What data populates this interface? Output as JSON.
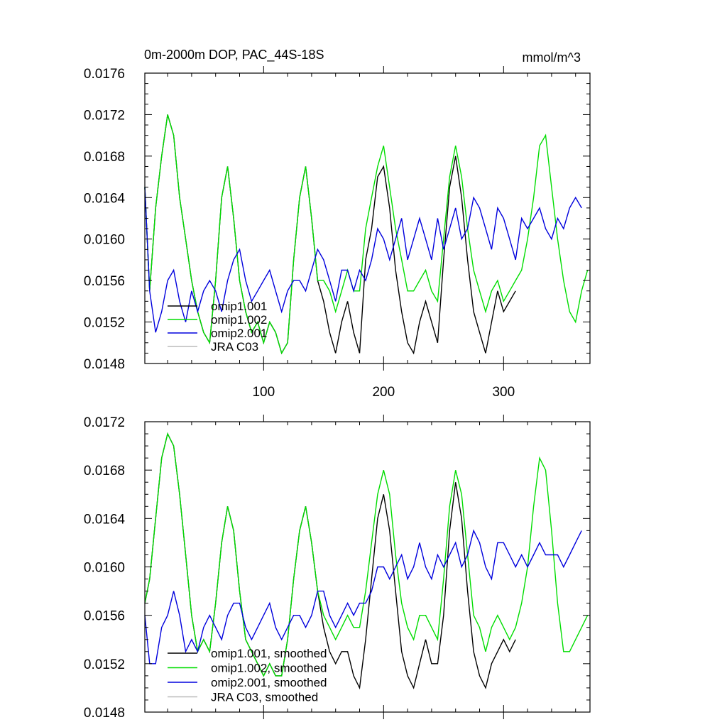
{
  "chart_data": [
    {
      "type": "line",
      "title": "0m-2000m DOP, PAC_44S-18S",
      "units": "mmol/m^3",
      "xlim": [
        1,
        372
      ],
      "ylim": [
        0.0148,
        0.0176
      ],
      "y_ticks": [
        "0.0148",
        "0.0152",
        "0.0156",
        "0.0160",
        "0.0164",
        "0.0168",
        "0.0172",
        "0.0176"
      ],
      "x_ticks": [
        "100",
        "200",
        "300"
      ],
      "grid": false,
      "legend_position": "bottom-left",
      "series": [
        {
          "name": "omip1.001",
          "color": "#000000",
          "x": [
            1,
            5,
            10,
            15,
            20,
            25,
            30,
            35,
            40,
            45,
            50,
            55,
            60,
            65,
            70,
            75,
            80,
            85,
            90,
            95,
            100,
            105,
            110,
            115,
            120,
            125,
            130,
            135,
            140,
            145,
            150,
            155,
            160,
            165,
            170,
            175,
            180,
            185,
            190,
            195,
            200,
            205,
            210,
            215,
            220,
            225,
            230,
            235,
            240,
            245,
            250,
            255,
            260,
            265,
            270,
            275,
            280,
            285,
            290,
            295,
            300,
            305,
            310
          ],
          "y": [
            0.0165,
            0.0155,
            0.0163,
            0.0168,
            0.0172,
            0.017,
            0.0164,
            0.016,
            0.0156,
            0.0153,
            0.0151,
            0.015,
            0.0156,
            0.0164,
            0.0167,
            0.0162,
            0.0156,
            0.0153,
            0.0151,
            0.0152,
            0.015,
            0.0152,
            0.0151,
            0.0149,
            0.015,
            0.0158,
            0.0164,
            0.0167,
            0.0162,
            0.0156,
            0.0154,
            0.0151,
            0.0149,
            0.0152,
            0.0154,
            0.0151,
            0.0149,
            0.0158,
            0.0161,
            0.0166,
            0.0167,
            0.0163,
            0.0157,
            0.0153,
            0.015,
            0.0149,
            0.0152,
            0.0154,
            0.0152,
            0.015,
            0.0158,
            0.0165,
            0.0168,
            0.0164,
            0.0158,
            0.0153,
            0.0151,
            0.0149,
            0.0152,
            0.0155,
            0.0153,
            0.0154,
            0.0155
          ]
        },
        {
          "name": "omip1.002",
          "color": "#00dd00",
          "x": [
            1,
            5,
            10,
            15,
            20,
            25,
            30,
            35,
            40,
            45,
            50,
            55,
            60,
            65,
            70,
            75,
            80,
            85,
            90,
            95,
            100,
            105,
            110,
            115,
            120,
            125,
            130,
            135,
            140,
            145,
            150,
            155,
            160,
            165,
            170,
            175,
            180,
            185,
            190,
            195,
            200,
            205,
            210,
            215,
            220,
            225,
            230,
            235,
            240,
            245,
            250,
            255,
            260,
            265,
            270,
            275,
            280,
            285,
            290,
            295,
            300,
            305,
            310,
            315,
            320,
            325,
            330,
            335,
            340,
            345,
            350,
            355,
            360,
            365,
            370
          ],
          "y": [
            0.0165,
            0.0155,
            0.0163,
            0.0168,
            0.0172,
            0.017,
            0.0164,
            0.016,
            0.0156,
            0.0153,
            0.0151,
            0.015,
            0.0156,
            0.0164,
            0.0167,
            0.0162,
            0.0156,
            0.0153,
            0.0151,
            0.0152,
            0.015,
            0.0152,
            0.0151,
            0.0149,
            0.015,
            0.0158,
            0.0164,
            0.0167,
            0.0162,
            0.0156,
            0.0156,
            0.0155,
            0.0153,
            0.0155,
            0.0157,
            0.0155,
            0.0155,
            0.0161,
            0.0164,
            0.0167,
            0.0169,
            0.0165,
            0.0161,
            0.0158,
            0.0155,
            0.0155,
            0.0156,
            0.0157,
            0.0155,
            0.0154,
            0.016,
            0.0166,
            0.0169,
            0.0166,
            0.0161,
            0.0157,
            0.0155,
            0.0153,
            0.0155,
            0.0156,
            0.0154,
            0.0155,
            0.0156,
            0.0157,
            0.016,
            0.0164,
            0.0169,
            0.017,
            0.0165,
            0.016,
            0.0156,
            0.0153,
            0.0152,
            0.0155,
            0.0157
          ]
        },
        {
          "name": "omip2.001",
          "color": "#0000dd",
          "x": [
            1,
            5,
            10,
            15,
            20,
            25,
            30,
            35,
            40,
            45,
            50,
            55,
            60,
            65,
            70,
            75,
            80,
            85,
            90,
            95,
            100,
            105,
            110,
            115,
            120,
            125,
            130,
            135,
            140,
            145,
            150,
            155,
            160,
            165,
            170,
            175,
            180,
            185,
            190,
            195,
            200,
            205,
            210,
            215,
            220,
            225,
            230,
            235,
            240,
            245,
            250,
            255,
            260,
            265,
            270,
            275,
            280,
            285,
            290,
            295,
            300,
            305,
            310,
            315,
            320,
            325,
            330,
            335,
            340,
            345,
            350,
            355,
            360,
            365
          ],
          "y": [
            0.0165,
            0.0155,
            0.0151,
            0.0153,
            0.0156,
            0.0157,
            0.0154,
            0.0152,
            0.0155,
            0.0153,
            0.0155,
            0.0156,
            0.0155,
            0.0153,
            0.0156,
            0.0158,
            0.0159,
            0.0156,
            0.0154,
            0.0155,
            0.0156,
            0.0157,
            0.0155,
            0.0153,
            0.0155,
            0.0156,
            0.0156,
            0.0155,
            0.0157,
            0.0159,
            0.0158,
            0.0156,
            0.0154,
            0.0157,
            0.0157,
            0.0155,
            0.0157,
            0.0156,
            0.0158,
            0.0161,
            0.016,
            0.0158,
            0.016,
            0.0162,
            0.0158,
            0.016,
            0.0162,
            0.016,
            0.0158,
            0.0162,
            0.0159,
            0.0161,
            0.0163,
            0.016,
            0.0161,
            0.0164,
            0.0163,
            0.0161,
            0.0159,
            0.0163,
            0.0162,
            0.016,
            0.0158,
            0.0162,
            0.0161,
            0.0162,
            0.0163,
            0.0161,
            0.016,
            0.0162,
            0.0161,
            0.0163,
            0.0164,
            0.0163
          ]
        },
        {
          "name": "JRA C03",
          "color": "#bbbbbb",
          "x": [],
          "y": []
        }
      ]
    },
    {
      "type": "line",
      "xlim": [
        1,
        372
      ],
      "ylim": [
        0.0148,
        0.0172
      ],
      "y_ticks": [
        "0.0148",
        "0.0152",
        "0.0156",
        "0.0160",
        "0.0164",
        "0.0168",
        "0.0172"
      ],
      "grid": false,
      "legend_position": "bottom-left",
      "series": [
        {
          "name": "omip1.001, smoothed",
          "color": "#000000",
          "x": [
            1,
            5,
            10,
            15,
            20,
            25,
            30,
            35,
            40,
            45,
            50,
            55,
            60,
            65,
            70,
            75,
            80,
            85,
            90,
            95,
            100,
            105,
            110,
            115,
            120,
            125,
            130,
            135,
            140,
            145,
            150,
            155,
            160,
            165,
            170,
            175,
            180,
            185,
            190,
            195,
            200,
            205,
            210,
            215,
            220,
            225,
            230,
            235,
            240,
            245,
            250,
            255,
            260,
            265,
            270,
            275,
            280,
            285,
            290,
            295,
            300,
            305,
            310
          ],
          "y": [
            0.0157,
            0.0159,
            0.0164,
            0.0169,
            0.0171,
            0.017,
            0.0166,
            0.0161,
            0.0156,
            0.0153,
            0.0154,
            0.0153,
            0.0157,
            0.0162,
            0.0165,
            0.0163,
            0.0158,
            0.0154,
            0.0153,
            0.0152,
            0.0151,
            0.0152,
            0.0151,
            0.0151,
            0.0154,
            0.0159,
            0.0163,
            0.0165,
            0.0162,
            0.0158,
            0.0155,
            0.0153,
            0.0152,
            0.0153,
            0.0153,
            0.0151,
            0.015,
            0.0154,
            0.0159,
            0.0164,
            0.0166,
            0.0163,
            0.0158,
            0.0153,
            0.0151,
            0.015,
            0.0152,
            0.0154,
            0.0152,
            0.0152,
            0.0156,
            0.0163,
            0.0167,
            0.0164,
            0.0158,
            0.0153,
            0.0151,
            0.015,
            0.0152,
            0.0153,
            0.0154,
            0.0153,
            0.0154
          ]
        },
        {
          "name": "omip1.002, smoothed",
          "color": "#00dd00",
          "x": [
            1,
            5,
            10,
            15,
            20,
            25,
            30,
            35,
            40,
            45,
            50,
            55,
            60,
            65,
            70,
            75,
            80,
            85,
            90,
            95,
            100,
            105,
            110,
            115,
            120,
            125,
            130,
            135,
            140,
            145,
            150,
            155,
            160,
            165,
            170,
            175,
            180,
            185,
            190,
            195,
            200,
            205,
            210,
            215,
            220,
            225,
            230,
            235,
            240,
            245,
            250,
            255,
            260,
            265,
            270,
            275,
            280,
            285,
            290,
            295,
            300,
            305,
            310,
            315,
            320,
            325,
            330,
            335,
            340,
            345,
            350,
            355,
            360,
            365,
            370
          ],
          "y": [
            0.0157,
            0.0159,
            0.0164,
            0.0169,
            0.0171,
            0.017,
            0.0166,
            0.0161,
            0.0156,
            0.0153,
            0.0154,
            0.0153,
            0.0157,
            0.0162,
            0.0165,
            0.0163,
            0.0158,
            0.0154,
            0.0153,
            0.0152,
            0.0151,
            0.0152,
            0.0151,
            0.0151,
            0.0154,
            0.0159,
            0.0163,
            0.0165,
            0.0162,
            0.0158,
            0.0156,
            0.0155,
            0.0154,
            0.0155,
            0.0156,
            0.0155,
            0.0155,
            0.0158,
            0.0162,
            0.0166,
            0.0168,
            0.0166,
            0.0161,
            0.0157,
            0.0155,
            0.0154,
            0.0156,
            0.0156,
            0.0155,
            0.0154,
            0.0159,
            0.0165,
            0.0168,
            0.0166,
            0.0161,
            0.0156,
            0.0155,
            0.0153,
            0.0155,
            0.0156,
            0.0155,
            0.0154,
            0.0155,
            0.0157,
            0.016,
            0.0165,
            0.0169,
            0.0168,
            0.0163,
            0.0157,
            0.0153,
            0.0153,
            0.0154,
            0.0155,
            0.0156
          ]
        },
        {
          "name": "omip2.001, smoothed",
          "color": "#0000dd",
          "x": [
            1,
            5,
            10,
            15,
            20,
            25,
            30,
            35,
            40,
            45,
            50,
            55,
            60,
            65,
            70,
            75,
            80,
            85,
            90,
            95,
            100,
            105,
            110,
            115,
            120,
            125,
            130,
            135,
            140,
            145,
            150,
            155,
            160,
            165,
            170,
            175,
            180,
            185,
            190,
            195,
            200,
            205,
            210,
            215,
            220,
            225,
            230,
            235,
            240,
            245,
            250,
            255,
            260,
            265,
            270,
            275,
            280,
            285,
            290,
            295,
            300,
            305,
            310,
            315,
            320,
            325,
            330,
            335,
            340,
            345,
            350,
            355,
            360,
            365
          ],
          "y": [
            0.0156,
            0.0152,
            0.0152,
            0.0155,
            0.0156,
            0.0158,
            0.0156,
            0.0153,
            0.0154,
            0.0153,
            0.0155,
            0.0156,
            0.0155,
            0.0154,
            0.0156,
            0.0157,
            0.0157,
            0.0155,
            0.0154,
            0.0155,
            0.0156,
            0.0157,
            0.0155,
            0.0154,
            0.0155,
            0.0156,
            0.0156,
            0.0155,
            0.0156,
            0.0158,
            0.0158,
            0.0156,
            0.0155,
            0.0156,
            0.0157,
            0.0156,
            0.0157,
            0.0157,
            0.0158,
            0.016,
            0.016,
            0.0159,
            0.016,
            0.0161,
            0.0159,
            0.016,
            0.0162,
            0.016,
            0.0159,
            0.0161,
            0.016,
            0.0161,
            0.0162,
            0.016,
            0.0161,
            0.0163,
            0.0162,
            0.016,
            0.0159,
            0.0162,
            0.0162,
            0.0161,
            0.016,
            0.0161,
            0.016,
            0.0161,
            0.0162,
            0.0161,
            0.0161,
            0.0161,
            0.016,
            0.0161,
            0.0162,
            0.0163
          ]
        },
        {
          "name": "JRA C03, smoothed",
          "color": "#bbbbbb",
          "x": [],
          "y": []
        }
      ]
    }
  ]
}
